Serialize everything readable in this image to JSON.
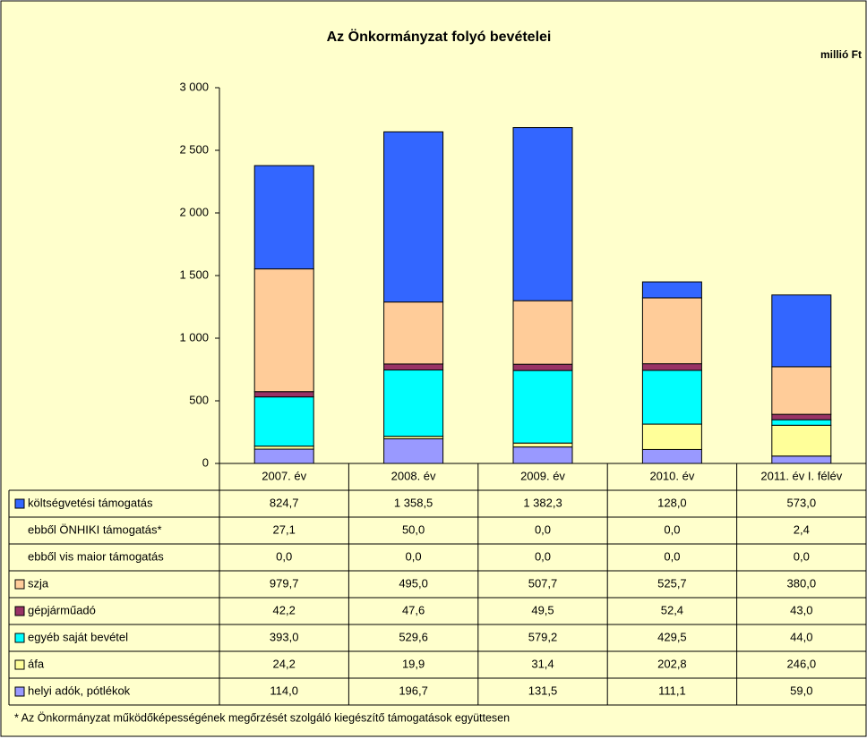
{
  "chart_data": {
    "type": "bar",
    "stacked": true,
    "title": "Az Önkormányzat folyó bevételei",
    "unit": "millió Ft",
    "categories": [
      "2007. év",
      "2008. év",
      "2009. év",
      "2010. év",
      "2011. év I. félév"
    ],
    "ylim": [
      0,
      3000
    ],
    "yticks": [
      0,
      500,
      {
        "value": 1000,
        "label": "1 000"
      },
      {
        "value": 1500,
        "label": "1 500"
      },
      {
        "value": 2000,
        "label": "2 000"
      },
      {
        "value": 2500,
        "label": "2 500"
      },
      {
        "value": 3000,
        "label": "3 000"
      }
    ],
    "series": [
      {
        "name": "költségvetési támogatás",
        "color": "#3366ff",
        "values": [
          824.7,
          1358.5,
          1382.3,
          128.0,
          573.0
        ],
        "value_labels": [
          "824,7",
          "1 358,5",
          "1 382,3",
          "128,0",
          "573,0"
        ]
      },
      {
        "name": "ebből ÖNHIKI támogatás*",
        "values": [
          27.1,
          50.0,
          0.0,
          0.0,
          2.4
        ],
        "value_labels": [
          "27,1",
          "50,0",
          "0,0",
          "0,0",
          "2,4"
        ]
      },
      {
        "name": "ebből vis maior támogatás",
        "values": [
          0.0,
          0.0,
          0.0,
          0.0,
          0.0
        ],
        "value_labels": [
          "0,0",
          "0,0",
          "0,0",
          "0,0",
          "0,0"
        ]
      },
      {
        "name": "szja",
        "color": "#ffcc99",
        "values": [
          979.7,
          495.0,
          507.7,
          525.7,
          380.0
        ],
        "value_labels": [
          "979,7",
          "495,0",
          "507,7",
          "525,7",
          "380,0"
        ]
      },
      {
        "name": "gépjárműadó",
        "color": "#993366",
        "values": [
          42.2,
          47.6,
          49.5,
          52.4,
          43.0
        ],
        "value_labels": [
          "42,2",
          "47,6",
          "49,5",
          "52,4",
          "43,0"
        ]
      },
      {
        "name": "egyéb saját bevétel",
        "color": "#00ffff",
        "values": [
          393.0,
          529.6,
          579.2,
          429.5,
          44.0
        ],
        "value_labels": [
          "393,0",
          "529,6",
          "579,2",
          "429,5",
          "44,0"
        ]
      },
      {
        "name": "áfa",
        "color": "#ffff99",
        "values": [
          24.2,
          19.9,
          31.4,
          202.8,
          246.0
        ],
        "value_labels": [
          "24,2",
          "19,9",
          "31,4",
          "202,8",
          "246,0"
        ]
      },
      {
        "name": "helyi adók, pótlékok",
        "color": "#9999ff",
        "values": [
          114.0,
          196.7,
          131.5,
          111.1,
          59.0
        ],
        "value_labels": [
          "114,0",
          "196,7",
          "131,5",
          "111,1",
          "59,0"
        ]
      }
    ],
    "footnote": "* Az Önkormányzat működőképességének megőrzését szolgáló kiegészítő támogatások együttesen"
  }
}
